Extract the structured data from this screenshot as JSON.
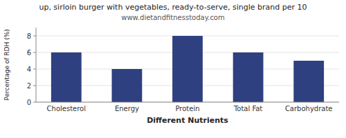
{
  "chart_data": {
    "type": "bar",
    "title": "up, sirloin burger with vegetables, ready-to-serve, single brand per 10",
    "subtitle": "www.dietandfitnesstoday.com",
    "xlabel": "Different Nutrients",
    "ylabel": "Percentage of RDH (%)",
    "categories": [
      "Cholesterol",
      "Energy",
      "Protein",
      "Total Fat",
      "Carbohydrate"
    ],
    "values": [
      6.0,
      4.0,
      8.0,
      6.0,
      5.0
    ],
    "color": "#2e4080",
    "ylim": [
      0,
      9
    ],
    "yticks": [
      0,
      2,
      4,
      6,
      8
    ],
    "grid": true
  }
}
